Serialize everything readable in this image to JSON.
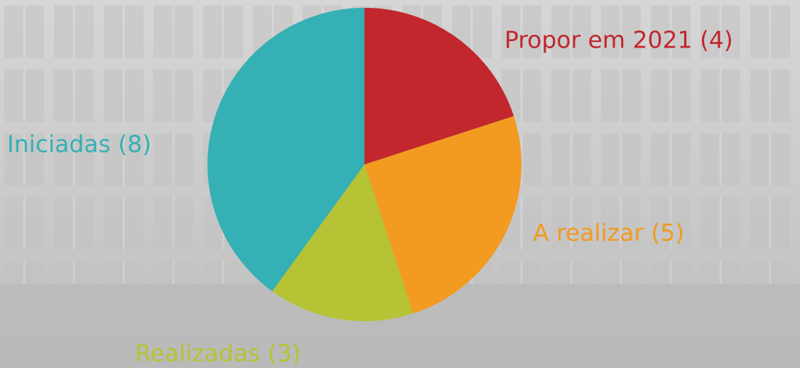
{
  "chart_data": {
    "type": "pie",
    "categories": [
      "Propor em 2021 (4)",
      "A realizar (5)",
      "Realizadas (3)",
      "Iniciadas (8)"
    ],
    "values": [
      4,
      5,
      3,
      8
    ],
    "colors": [
      "#c1272d",
      "#f29b20",
      "#b5c334",
      "#35b0b5"
    ]
  }
}
